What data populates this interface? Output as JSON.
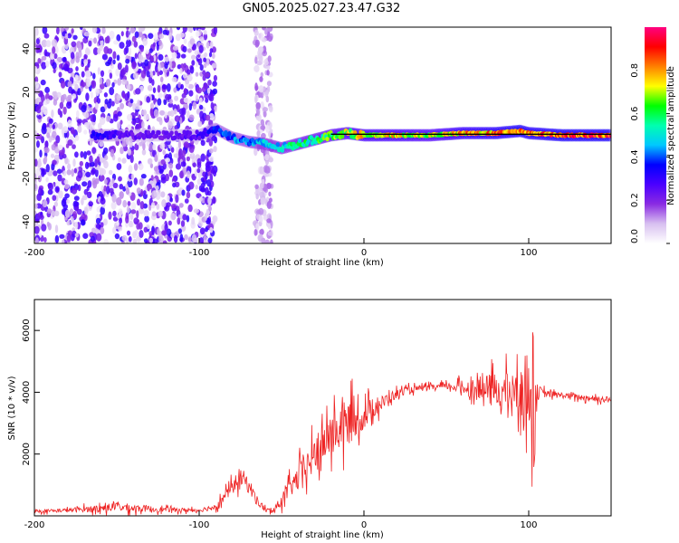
{
  "page": {
    "title": "GN05.2025.027.23.47.G32"
  },
  "chart_data": [
    {
      "type": "heatmap",
      "xlabel": "Height of straight line (km)",
      "ylabel": "Frequency (Hz)",
      "xlim": [
        -200,
        150
      ],
      "ylim": [
        -50,
        50
      ],
      "xticks": [
        -200,
        -100,
        0,
        100
      ],
      "yticks": [
        -40,
        -20,
        0,
        20,
        40
      ],
      "colorbar": {
        "label": "Normalized spectral amplitude",
        "range": [
          0,
          1
        ],
        "ticks": [
          "0.0",
          "0.2",
          "0.4",
          "0.6",
          "0.8"
        ],
        "colormap": [
          "#ffffff",
          "#d8c0f0",
          "#8a2be2",
          "#4b00ff",
          "#0000ff",
          "#00c8ff",
          "#00ffb0",
          "#00ff00",
          "#ffff00",
          "#ff8000",
          "#ff0000",
          "#ff0080"
        ]
      },
      "ridge": {
        "x": [
          -160,
          -140,
          -120,
          -100,
          -90,
          -80,
          -70,
          -60,
          -50,
          -40,
          -30,
          -20,
          -10,
          0,
          20,
          40,
          60,
          80,
          95,
          100,
          120,
          150
        ],
        "freq_hz": [
          0,
          0,
          0,
          0,
          3,
          -1,
          -3,
          -4,
          -6,
          -4,
          -2,
          0,
          1,
          0,
          0,
          0,
          1,
          1,
          2,
          1,
          0,
          0
        ],
        "amplitude": [
          0.35,
          0.25,
          0.25,
          0.3,
          0.4,
          0.45,
          0.45,
          0.5,
          0.55,
          0.6,
          0.65,
          0.7,
          0.75,
          0.8,
          0.8,
          0.75,
          0.85,
          0.9,
          0.95,
          0.9,
          0.95,
          0.95
        ]
      },
      "noise_band": {
        "x_range": [
          -200,
          -90
        ],
        "extra_band_x_range": [
          -66,
          -56
        ]
      },
      "grid": false
    },
    {
      "type": "line",
      "xlabel": "Height of straight line (km)",
      "ylabel": "SNR (10 * v/v)",
      "xlim": [
        -200,
        150
      ],
      "ylim": [
        0,
        7000
      ],
      "xticks": [
        -200,
        -100,
        0,
        100
      ],
      "yticks": [
        2000,
        4000,
        6000
      ],
      "series": [
        {
          "color": "#ee2222",
          "x": [
            -200,
            -180,
            -160,
            -150,
            -140,
            -120,
            -100,
            -90,
            -80,
            -75,
            -70,
            -65,
            -60,
            -55,
            -50,
            -45,
            -40,
            -35,
            -30,
            -25,
            -20,
            -15,
            -10,
            -5,
            0,
            5,
            10,
            15,
            20,
            25,
            30,
            40,
            50,
            60,
            70,
            80,
            90,
            100,
            105,
            110,
            120,
            130,
            140,
            150
          ],
          "y": [
            150,
            180,
            250,
            300,
            250,
            200,
            180,
            300,
            900,
            1300,
            1000,
            500,
            200,
            150,
            500,
            900,
            1200,
            1600,
            1900,
            2300,
            2600,
            2800,
            3000,
            3100,
            3200,
            3500,
            3600,
            3800,
            3950,
            4050,
            4100,
            4150,
            4200,
            4150,
            4100,
            4050,
            4000,
            3900,
            4000,
            3950,
            3900,
            3850,
            3800,
            3750
          ],
          "spread": [
            120,
            140,
            260,
            320,
            280,
            160,
            140,
            220,
            500,
            650,
            600,
            350,
            180,
            160,
            450,
            650,
            900,
            1100,
            1200,
            1300,
            1500,
            1600,
            1800,
            1100,
            900,
            750,
            600,
            450,
            300,
            250,
            220,
            200,
            220,
            450,
            900,
            1300,
            1300,
            2000,
            600,
            250,
            220,
            200,
            220,
            250
          ]
        }
      ],
      "grid": false
    }
  ]
}
